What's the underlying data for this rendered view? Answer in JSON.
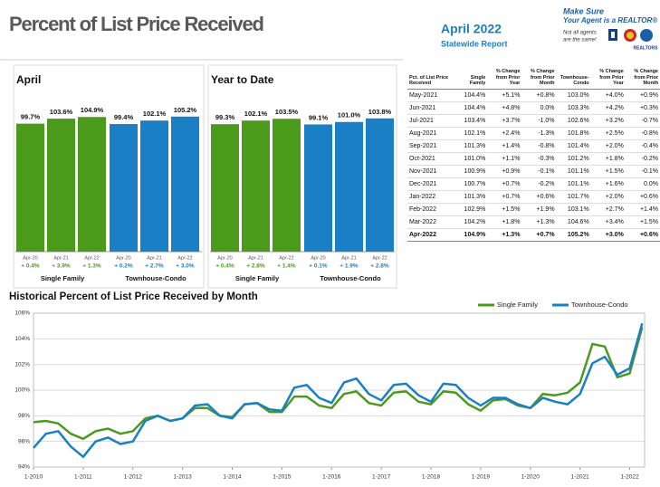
{
  "header": {
    "title": "Percent of List Price Received",
    "report_title": "April 2022",
    "report_subtitle": "Statewide Report",
    "logo_line1": "Make Sure",
    "logo_line2": "Your Agent is a REALTOR®",
    "logo_note1": "Not all agents",
    "logo_note2": "are the same!",
    "logo_brand": "REALTORS"
  },
  "chart_data": [
    {
      "type": "bar",
      "title": "April",
      "categories": [
        "Apr-20",
        "Apr-21",
        "Apr-22"
      ],
      "ylim": [
        0,
        110
      ],
      "series": [
        {
          "name": "Single Family",
          "color": "#4c9a1c",
          "values": [
            99.7,
            103.6,
            104.9
          ],
          "value_labels": [
            "99.7%",
            "103.6%",
            "104.9%"
          ],
          "change_labels": [
            "+ 0.4%",
            "+ 3.9%",
            "+ 1.3%"
          ]
        },
        {
          "name": "Townhouse-Condo",
          "color": "#1a7fc4",
          "values": [
            99.4,
            102.1,
            105.2
          ],
          "value_labels": [
            "99.4%",
            "102.1%",
            "105.2%"
          ],
          "change_labels": [
            "+ 0.2%",
            "+ 2.7%",
            "+ 3.0%"
          ]
        }
      ]
    },
    {
      "type": "bar",
      "title": "Year to Date",
      "categories": [
        "Apr-20",
        "Apr-21",
        "Apr-22"
      ],
      "ylim": [
        0,
        110
      ],
      "series": [
        {
          "name": "Single Family",
          "color": "#4c9a1c",
          "values": [
            99.3,
            102.1,
            103.5
          ],
          "value_labels": [
            "99.3%",
            "102.1%",
            "103.5%"
          ],
          "change_labels": [
            "+ 0.4%",
            "+ 2.8%",
            "+ 1.4%"
          ]
        },
        {
          "name": "Townhouse-Condo",
          "color": "#1a7fc4",
          "values": [
            99.1,
            101.0,
            103.8
          ],
          "value_labels": [
            "99.1%",
            "101.0%",
            "103.8%"
          ],
          "change_labels": [
            "+ 0.1%",
            "+ 1.9%",
            "+ 2.8%"
          ]
        }
      ]
    },
    {
      "type": "line",
      "title": "Historical Percent of List Price Received by Month",
      "grid": true,
      "legend": "top-right",
      "xlim": [
        2010,
        2022.3
      ],
      "xticks": [
        {
          "value": 2010,
          "label": "1-2010"
        },
        {
          "value": 2011,
          "label": "1-2011"
        },
        {
          "value": 2012,
          "label": "1-2012"
        },
        {
          "value": 2013,
          "label": "1-2013"
        },
        {
          "value": 2014,
          "label": "1-2014"
        },
        {
          "value": 2015,
          "label": "1-2015"
        },
        {
          "value": 2016,
          "label": "1-2016"
        },
        {
          "value": 2017,
          "label": "1-2017"
        },
        {
          "value": 2018,
          "label": "1-2018"
        },
        {
          "value": 2019,
          "label": "1-2019"
        },
        {
          "value": 2020,
          "label": "1-2020"
        },
        {
          "value": 2021,
          "label": "1-2021"
        },
        {
          "value": 2022,
          "label": "1-2022"
        }
      ],
      "ylim": [
        94,
        106
      ],
      "yticks": [
        {
          "value": 94,
          "label": "94%"
        },
        {
          "value": 96,
          "label": "96%"
        },
        {
          "value": 98,
          "label": "98%"
        },
        {
          "value": 100,
          "label": "100%"
        },
        {
          "value": 102,
          "label": "102%"
        },
        {
          "value": 104,
          "label": "104%"
        },
        {
          "value": 106,
          "label": "106%"
        }
      ],
      "x": [
        2010,
        2010.25,
        2010.5,
        2010.75,
        2011,
        2011.25,
        2011.5,
        2011.75,
        2012,
        2012.25,
        2012.5,
        2012.75,
        2013,
        2013.25,
        2013.5,
        2013.75,
        2014,
        2014.25,
        2014.5,
        2014.75,
        2015,
        2015.25,
        2015.5,
        2015.75,
        2016,
        2016.25,
        2016.5,
        2016.75,
        2017,
        2017.25,
        2017.5,
        2017.75,
        2018,
        2018.25,
        2018.5,
        2018.75,
        2019,
        2019.25,
        2019.5,
        2019.75,
        2020,
        2020.25,
        2020.5,
        2020.75,
        2021,
        2021.25,
        2021.5,
        2021.75,
        2022,
        2022.25
      ],
      "series": [
        {
          "name": "Single Family",
          "color": "#4c9a1c",
          "values": [
            97.5,
            97.6,
            97.4,
            96.6,
            96.2,
            96.8,
            97.0,
            96.6,
            96.8,
            97.8,
            98.0,
            97.6,
            97.8,
            98.6,
            98.6,
            98.0,
            97.9,
            98.9,
            99.0,
            98.3,
            98.3,
            99.5,
            99.5,
            98.8,
            98.6,
            99.7,
            99.9,
            99.0,
            98.8,
            99.8,
            99.9,
            99.1,
            98.9,
            99.9,
            99.8,
            98.9,
            98.4,
            99.2,
            99.3,
            98.8,
            98.6,
            99.7,
            99.6,
            99.8,
            100.6,
            103.6,
            103.4,
            101.0,
            101.3,
            104.9
          ]
        },
        {
          "name": "Townhouse-Condo",
          "color": "#1a7fc4",
          "values": [
            95.5,
            96.6,
            96.8,
            95.6,
            94.8,
            96.0,
            96.3,
            95.8,
            96.0,
            97.6,
            98.0,
            97.6,
            97.8,
            98.8,
            98.9,
            98.0,
            97.8,
            98.9,
            99.0,
            98.5,
            98.4,
            100.2,
            100.4,
            99.4,
            99.0,
            100.6,
            100.9,
            99.7,
            99.2,
            100.4,
            100.5,
            99.6,
            99.1,
            100.5,
            100.4,
            99.4,
            98.8,
            99.4,
            99.4,
            98.9,
            98.6,
            99.4,
            99.1,
            98.9,
            99.7,
            102.1,
            102.6,
            101.2,
            101.7,
            105.2
          ]
        }
      ]
    }
  ],
  "table": {
    "columns": [
      "Pct. of List Price Received",
      "Single Family",
      "% Change from Prior Year",
      "% Change from Prior Month",
      "Townhouse-Condo",
      "% Change from Prior Year",
      "% Change from Prior Month"
    ],
    "rows": [
      [
        "May-2021",
        "104.4%",
        "+5.1%",
        "+0.8%",
        "103.0%",
        "+4.0%",
        "+0.9%"
      ],
      [
        "Jun-2021",
        "104.4%",
        "+4.8%",
        "0.0%",
        "103.3%",
        "+4.2%",
        "+0.3%"
      ],
      [
        "Jul-2021",
        "103.4%",
        "+3.7%",
        "-1.0%",
        "102.6%",
        "+3.2%",
        "-0.7%"
      ],
      [
        "Aug-2021",
        "102.1%",
        "+2.4%",
        "-1.3%",
        "101.8%",
        "+2.5%",
        "-0.8%"
      ],
      [
        "Sep-2021",
        "101.3%",
        "+1.4%",
        "-0.8%",
        "101.4%",
        "+2.0%",
        "-0.4%"
      ],
      [
        "Oct-2021",
        "101.0%",
        "+1.1%",
        "-0.3%",
        "101.2%",
        "+1.8%",
        "-0.2%"
      ],
      [
        "Nov-2021",
        "100.9%",
        "+0.9%",
        "-0.1%",
        "101.1%",
        "+1.5%",
        "-0.1%"
      ],
      [
        "Dec-2021",
        "100.7%",
        "+0.7%",
        "-0.2%",
        "101.1%",
        "+1.6%",
        "0.0%"
      ],
      [
        "Jan-2022",
        "101.3%",
        "+0.7%",
        "+0.6%",
        "101.7%",
        "+2.0%",
        "+0.6%"
      ],
      [
        "Feb-2022",
        "102.9%",
        "+1.5%",
        "+1.9%",
        "103.1%",
        "+2.7%",
        "+1.4%"
      ],
      [
        "Mar-2022",
        "104.2%",
        "+1.8%",
        "+1.3%",
        "104.6%",
        "+3.4%",
        "+1.5%"
      ],
      [
        "Apr-2022",
        "104.9%",
        "+1.3%",
        "+0.7%",
        "105.2%",
        "+3.0%",
        "+0.6%"
      ]
    ]
  }
}
